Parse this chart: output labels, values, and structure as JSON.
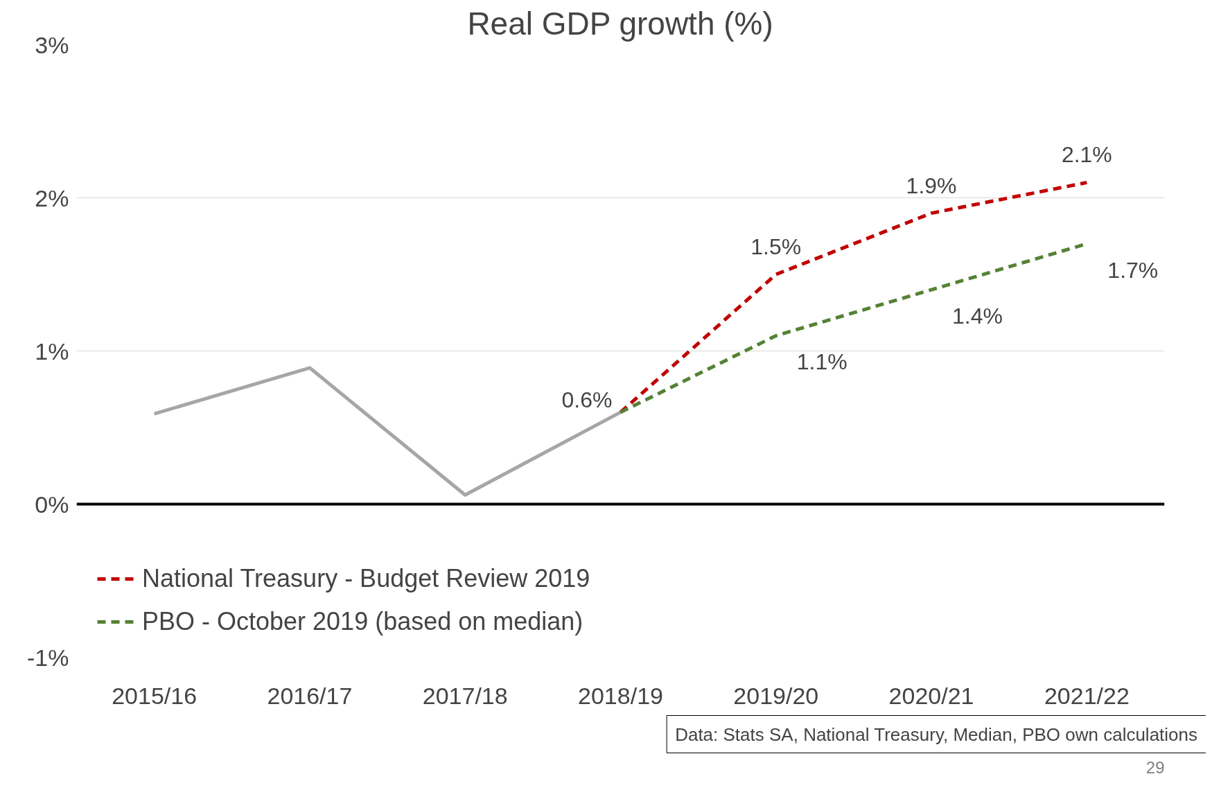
{
  "chart_data": {
    "type": "line",
    "title": "Real GDP growth (%)",
    "categories": [
      "2015/16",
      "2016/17",
      "2017/18",
      "2018/19",
      "2019/20",
      "2020/21",
      "2021/22"
    ],
    "series": [
      {
        "color": "#a6a6a6",
        "line_style": "solid",
        "values": [
          0.59,
          0.89,
          0.06,
          0.6,
          null,
          null,
          null
        ],
        "value_labels": [
          null,
          null,
          null,
          "0.6%",
          null,
          null,
          null
        ]
      },
      {
        "name": "National Treasury - Budget Review 2019",
        "color": "#c00000",
        "line_style": "dashed",
        "values": [
          null,
          null,
          null,
          0.6,
          1.5,
          1.9,
          2.1
        ],
        "value_labels": [
          null,
          null,
          null,
          null,
          "1.5%",
          "1.9%",
          "2.1%"
        ]
      },
      {
        "name": "PBO - October 2019 (based on median)",
        "color": "#548235",
        "line_style": "dashed",
        "values": [
          null,
          null,
          null,
          0.6,
          1.1,
          1.4,
          1.7
        ],
        "value_labels": [
          null,
          null,
          null,
          null,
          "1.1%",
          "1.4%",
          "1.7%"
        ]
      }
    ],
    "ylim": [
      -1,
      3
    ],
    "yticks": [
      {
        "value": -1,
        "label": "-1%"
      },
      {
        "value": 0,
        "label": "0%"
      },
      {
        "value": 1,
        "label": "1%"
      },
      {
        "value": 2,
        "label": "2%"
      },
      {
        "value": 3,
        "label": "3%"
      }
    ],
    "ref_lines": [
      {
        "axis": "y",
        "value": 0,
        "color": "#000000"
      }
    ],
    "grid": "y",
    "legend": "bottom left",
    "marker": "none",
    "annotations": [
      "Data: Stats SA, National Treasury, Median, PBO own calculations",
      "29"
    ]
  }
}
